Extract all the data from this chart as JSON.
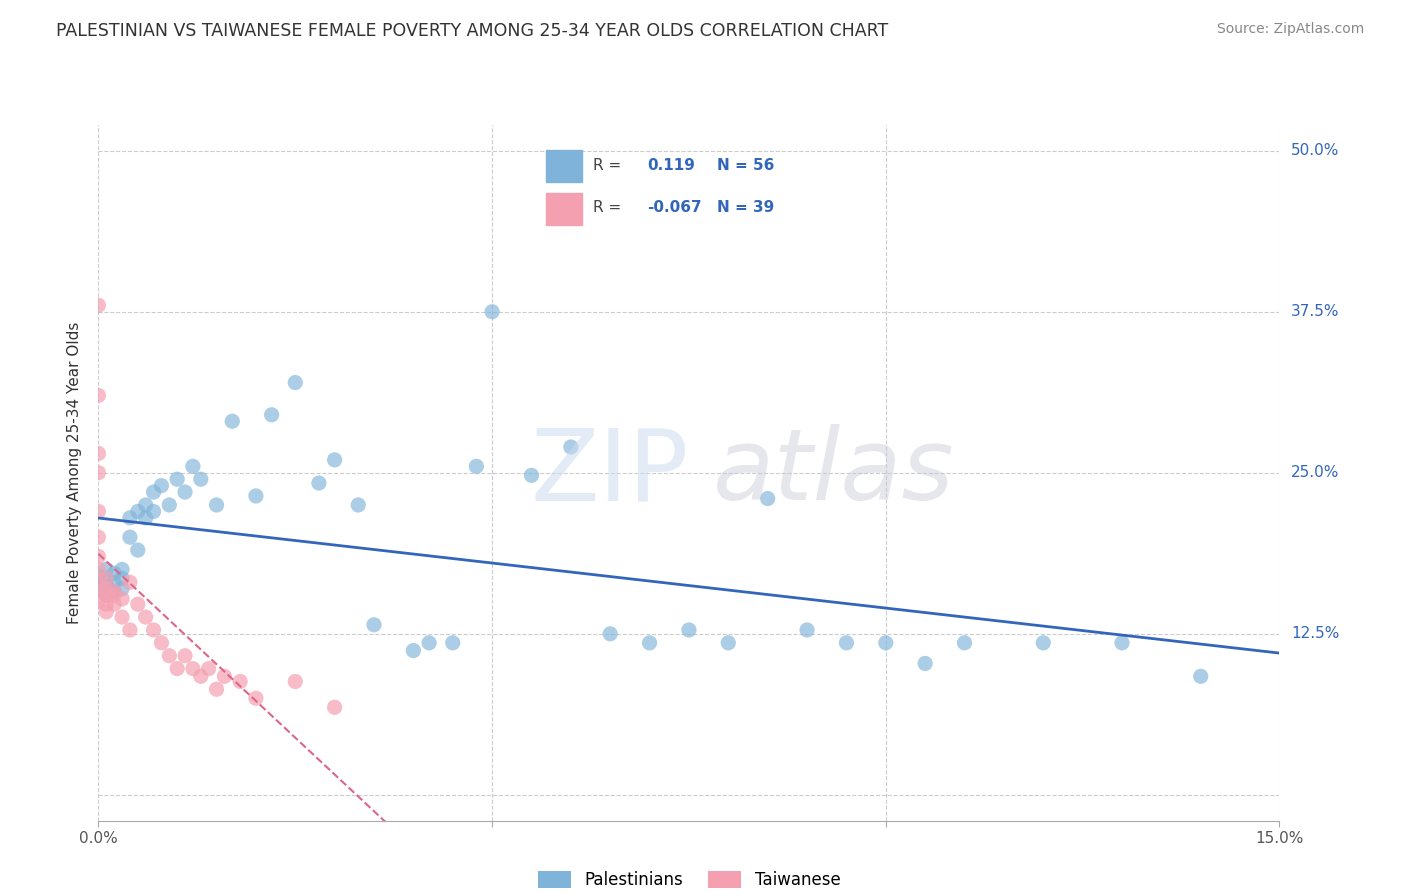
{
  "title": "PALESTINIAN VS TAIWANESE FEMALE POVERTY AMONG 25-34 YEAR OLDS CORRELATION CHART",
  "source": "Source: ZipAtlas.com",
  "ylabel": "Female Poverty Among 25-34 Year Olds",
  "xlim": [
    0.0,
    0.15
  ],
  "ylim": [
    -0.02,
    0.52
  ],
  "grid_color": "#cccccc",
  "background_color": "#ffffff",
  "r_palestinian": 0.119,
  "n_palestinian": 56,
  "r_taiwanese": -0.067,
  "n_taiwanese": 39,
  "blue_color": "#7fb3d9",
  "pink_color": "#f4a0b0",
  "blue_line_color": "#3366bb",
  "pink_line_color": "#dd6688",
  "legend_label_color": "#3366bb",
  "tick_color": "#3366bb",
  "pal_x": [
    0.0,
    0.0,
    0.0,
    0.001,
    0.001,
    0.001,
    0.001,
    0.002,
    0.002,
    0.002,
    0.003,
    0.003,
    0.003,
    0.004,
    0.004,
    0.005,
    0.005,
    0.006,
    0.006,
    0.007,
    0.007,
    0.008,
    0.009,
    0.01,
    0.011,
    0.012,
    0.013,
    0.015,
    0.017,
    0.02,
    0.022,
    0.025,
    0.028,
    0.03,
    0.033,
    0.035,
    0.04,
    0.042,
    0.045,
    0.048,
    0.05,
    0.055,
    0.06,
    0.065,
    0.07,
    0.075,
    0.08,
    0.085,
    0.09,
    0.095,
    0.1,
    0.105,
    0.11,
    0.12,
    0.13,
    0.14
  ],
  "pal_y": [
    0.165,
    0.17,
    0.16,
    0.168,
    0.155,
    0.175,
    0.162,
    0.158,
    0.172,
    0.165,
    0.16,
    0.175,
    0.168,
    0.215,
    0.2,
    0.22,
    0.19,
    0.215,
    0.225,
    0.235,
    0.22,
    0.24,
    0.225,
    0.245,
    0.235,
    0.255,
    0.245,
    0.225,
    0.29,
    0.232,
    0.295,
    0.32,
    0.242,
    0.26,
    0.225,
    0.132,
    0.112,
    0.118,
    0.118,
    0.255,
    0.375,
    0.248,
    0.27,
    0.125,
    0.118,
    0.128,
    0.118,
    0.23,
    0.128,
    0.118,
    0.118,
    0.102,
    0.118,
    0.118,
    0.118,
    0.092
  ],
  "tai_x": [
    0.0,
    0.0,
    0.0,
    0.0,
    0.0,
    0.0,
    0.0,
    0.0,
    0.0,
    0.0,
    0.0,
    0.001,
    0.001,
    0.001,
    0.001,
    0.001,
    0.002,
    0.002,
    0.002,
    0.003,
    0.003,
    0.004,
    0.004,
    0.005,
    0.006,
    0.007,
    0.008,
    0.009,
    0.01,
    0.011,
    0.012,
    0.013,
    0.014,
    0.015,
    0.016,
    0.018,
    0.02,
    0.025,
    0.03
  ],
  "tai_y": [
    0.38,
    0.31,
    0.265,
    0.25,
    0.22,
    0.2,
    0.185,
    0.175,
    0.165,
    0.158,
    0.15,
    0.16,
    0.155,
    0.148,
    0.142,
    0.168,
    0.158,
    0.148,
    0.155,
    0.152,
    0.138,
    0.165,
    0.128,
    0.148,
    0.138,
    0.128,
    0.118,
    0.108,
    0.098,
    0.108,
    0.098,
    0.092,
    0.098,
    0.082,
    0.092,
    0.088,
    0.075,
    0.088,
    0.068
  ]
}
